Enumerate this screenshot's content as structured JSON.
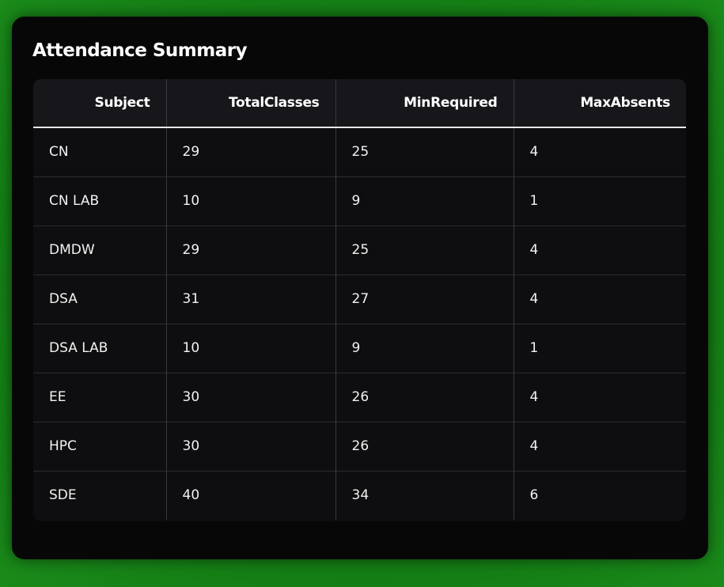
{
  "title": "Attendance Summary",
  "table": {
    "headers": [
      "Subject",
      "TotalClasses",
      "MinRequired",
      "MaxAbsents"
    ],
    "rows": [
      [
        "CN",
        "29",
        "25",
        "4"
      ],
      [
        "CN LAB",
        "10",
        "9",
        "1"
      ],
      [
        "DMDW",
        "29",
        "25",
        "4"
      ],
      [
        "DSA",
        "31",
        "27",
        "4"
      ],
      [
        "DSA LAB",
        "10",
        "9",
        "1"
      ],
      [
        "EE",
        "30",
        "26",
        "4"
      ],
      [
        "HPC",
        "30",
        "26",
        "4"
      ],
      [
        "SDE",
        "40",
        "34",
        "6"
      ]
    ]
  },
  "colors": {
    "background": "#147d14",
    "card": "#070707",
    "table": "#0e0e10",
    "header": "#17171b",
    "text": "#ffffff"
  }
}
